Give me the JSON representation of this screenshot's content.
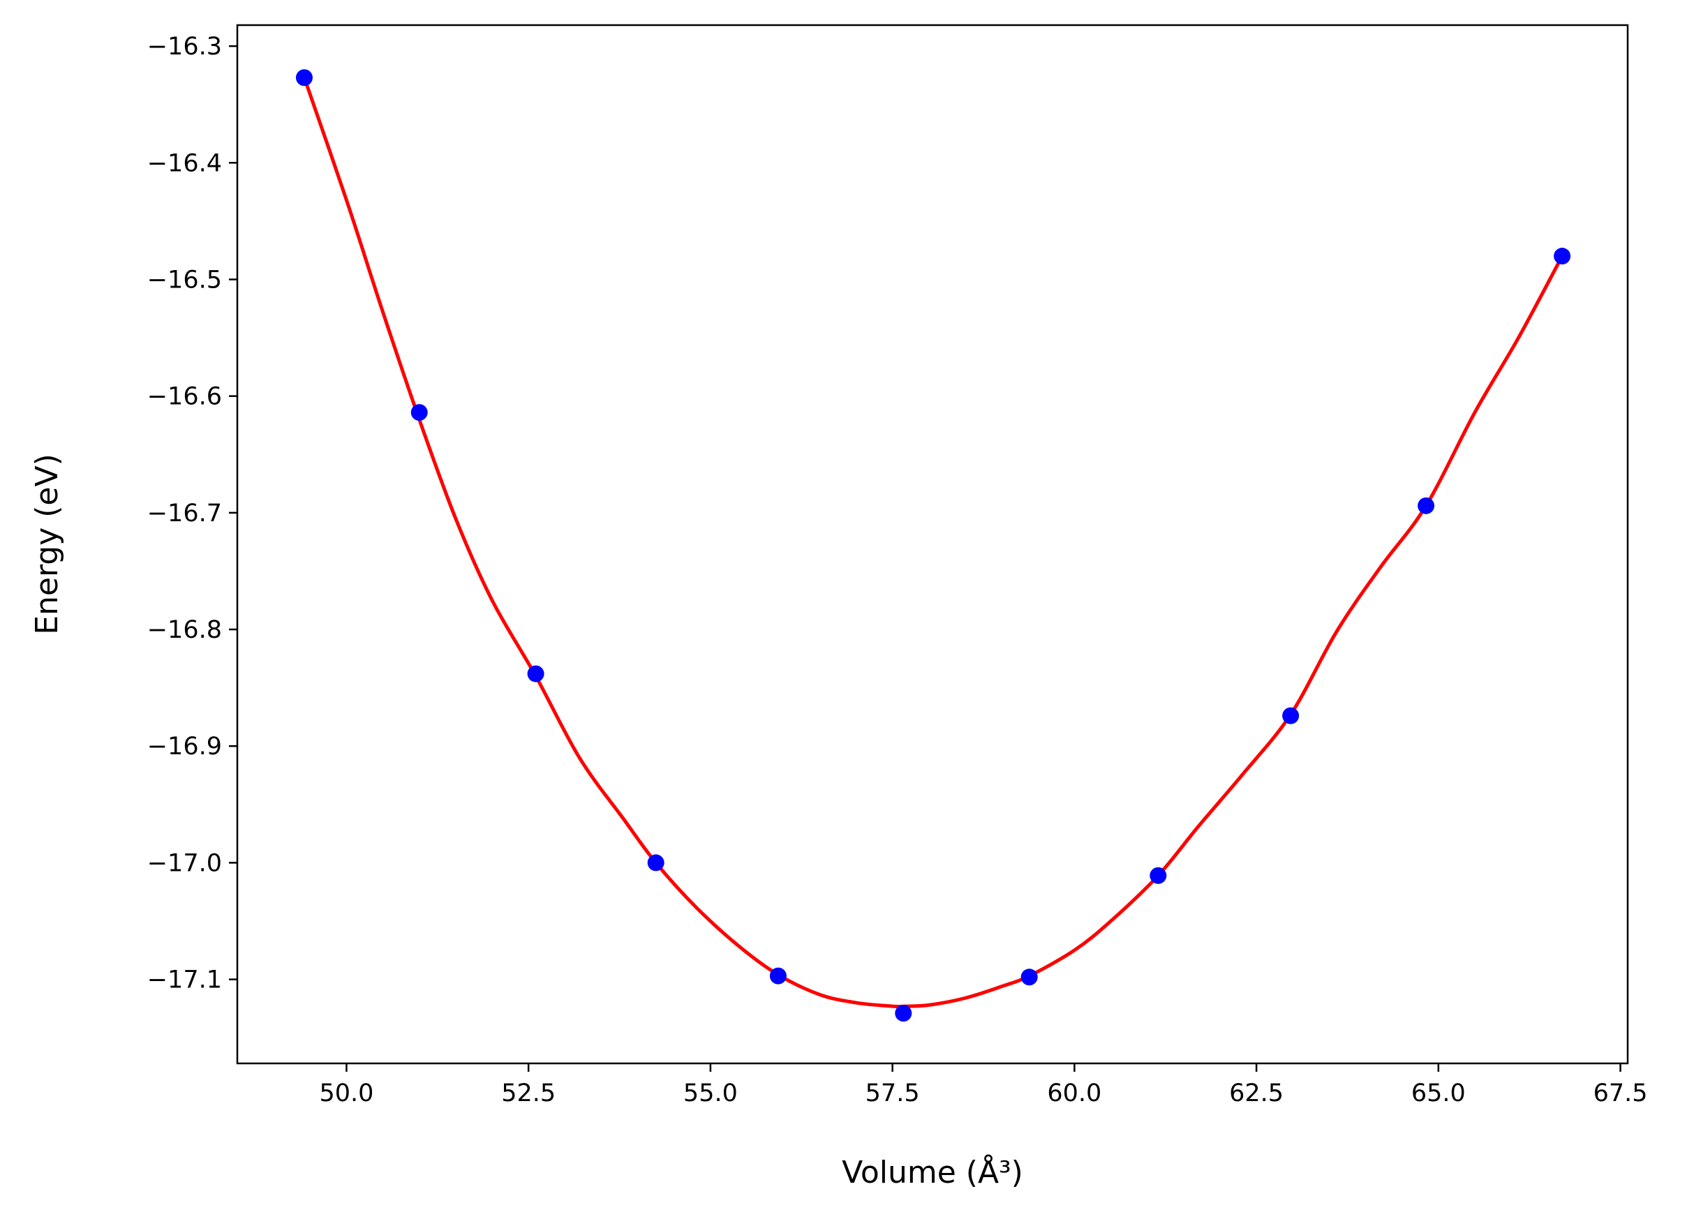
{
  "chart_data": {
    "type": "scatter",
    "xlabel": "Volume (Å³)",
    "ylabel": "Energy (eV)",
    "xlim": [
      48.5,
      67.6
    ],
    "ylim": [
      -17.172,
      -16.282
    ],
    "xticks": [
      50.0,
      52.5,
      55.0,
      57.5,
      60.0,
      62.5,
      65.0,
      67.5
    ],
    "xtick_labels": [
      "50.0",
      "52.5",
      "55.0",
      "57.5",
      "60.0",
      "62.5",
      "65.0",
      "67.5"
    ],
    "yticks": [
      -16.3,
      -16.4,
      -16.5,
      -16.6,
      -16.7,
      -16.8,
      -16.9,
      -17.0,
      -17.1
    ],
    "ytick_labels": [
      "−16.3",
      "−16.4",
      "−16.5",
      "−16.6",
      "−16.7",
      "−16.8",
      "−16.9",
      "−17.0",
      "−17.1"
    ],
    "grid": false,
    "series": [
      {
        "kind": "scatter",
        "color": "#0000ff",
        "x": [
          49.42,
          51.0,
          52.6,
          54.25,
          55.93,
          57.65,
          59.38,
          61.15,
          62.97,
          64.83,
          66.7
        ],
        "y": [
          -16.327,
          -16.614,
          -16.838,
          -17.0,
          -17.097,
          -17.129,
          -17.098,
          -17.011,
          -16.874,
          -16.694,
          -16.48
        ]
      },
      {
        "kind": "line",
        "color": "#ff0000",
        "x": [
          49.42,
          50.0,
          50.5,
          51.0,
          51.5,
          52.0,
          52.6,
          53.2,
          53.8,
          54.25,
          54.8,
          55.4,
          55.93,
          56.5,
          57.0,
          57.5,
          57.68,
          58.0,
          58.5,
          59.0,
          59.38,
          60.0,
          60.5,
          61.15,
          61.7,
          62.3,
          62.97,
          63.6,
          64.2,
          64.83,
          65.5,
          66.1,
          66.7
        ],
        "y": [
          -16.327,
          -16.432,
          -16.528,
          -16.62,
          -16.705,
          -16.775,
          -16.84,
          -16.91,
          -16.962,
          -17.0,
          -17.038,
          -17.072,
          -17.096,
          -17.113,
          -17.12,
          -17.123,
          -17.123,
          -17.122,
          -17.116,
          -17.106,
          -17.097,
          -17.075,
          -17.05,
          -17.011,
          -16.969,
          -16.925,
          -16.873,
          -16.802,
          -16.747,
          -16.694,
          -16.614,
          -16.55,
          -16.48
        ]
      }
    ]
  }
}
